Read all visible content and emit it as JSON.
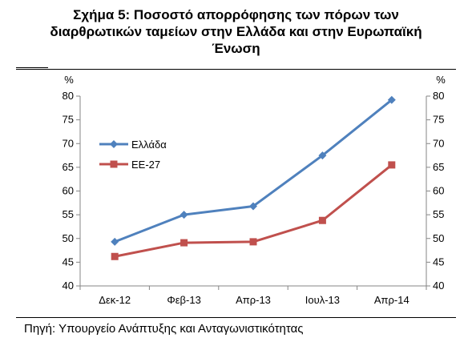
{
  "title_lines": [
    "Σχήμα 5: Ποσοστό απορρόφησης των πόρων των",
    "διαρθρωτικών ταμείων στην Ελλάδα και στην Ευρωπαϊκή",
    "Ένωση"
  ],
  "source": "Πηγή: Υπουργείο Ανάπτυξης και Ανταγωνιστικότητας",
  "chart_data": {
    "type": "line",
    "categories": [
      "Δεκ-12",
      "Φεβ-13",
      "Απρ-13",
      "Ιουλ-13",
      "Απρ-14"
    ],
    "series": [
      {
        "name": "Ελλάδα",
        "values": [
          49.3,
          55.0,
          56.8,
          67.5,
          79.2
        ],
        "color": "#4f81bd",
        "marker": "diamond"
      },
      {
        "name": "ΕΕ-27",
        "values": [
          46.2,
          49.1,
          49.3,
          53.8,
          65.5
        ],
        "color": "#c0504d",
        "marker": "square"
      }
    ],
    "ylabel_left": "%",
    "ylabel_right": "%",
    "ylim": [
      40,
      80
    ],
    "yticks": [
      40,
      45,
      50,
      55,
      60,
      65,
      70,
      75,
      80
    ],
    "grid": false,
    "legend_position": "upper-left"
  }
}
